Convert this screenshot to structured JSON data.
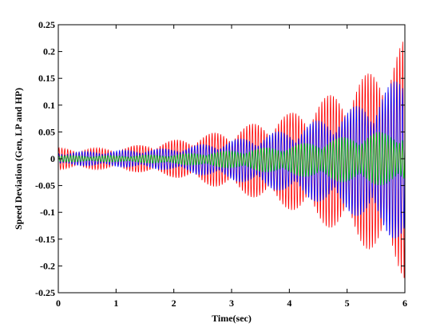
{
  "chart_data": {
    "type": "line",
    "title": "",
    "xlabel": "Time(sec)",
    "ylabel": "Speed Deviation (Gen, LP and HP)",
    "xlim": [
      0,
      6
    ],
    "ylim": [
      -0.25,
      0.25
    ],
    "xticks": [
      0,
      1,
      2,
      3,
      4,
      5,
      6
    ],
    "yticks": [
      -0.25,
      -0.2,
      -0.15,
      -0.1,
      -0.05,
      0,
      0.05,
      0.1,
      0.15,
      0.2,
      0.25
    ],
    "xtick_labels": [
      "0",
      "1",
      "2",
      "3",
      "4",
      "5",
      "6"
    ],
    "ytick_labels": [
      "-0.25",
      "-0.2",
      "-0.15",
      "-0.1",
      "-0.05",
      "0",
      "0.05",
      "0.1",
      "0.15",
      "0.2",
      "0.25"
    ],
    "grid": false,
    "legend": "none",
    "series": [
      {
        "color": "#ff0000",
        "envelope": {
          "t": [
            0,
            1,
            2,
            3,
            4,
            5,
            5.5,
            6
          ],
          "upper": [
            0.02,
            0.02,
            0.035,
            0.055,
            0.085,
            0.135,
            0.17,
            0.225
          ],
          "lower": [
            -0.02,
            -0.02,
            -0.035,
            -0.06,
            -0.095,
            -0.145,
            -0.18,
            -0.225
          ]
        },
        "oscillation_frequency_hz": 20
      },
      {
        "color": "#0000ff",
        "envelope": {
          "t": [
            0,
            1,
            2,
            3,
            4,
            5,
            5.5,
            6
          ],
          "upper": [
            0.012,
            0.015,
            0.02,
            0.035,
            0.055,
            0.09,
            0.12,
            0.16
          ],
          "lower": [
            -0.012,
            -0.015,
            -0.022,
            -0.04,
            -0.065,
            -0.1,
            -0.13,
            -0.165
          ]
        },
        "oscillation_frequency_hz": 20
      },
      {
        "color": "#00cc00",
        "envelope": {
          "t": [
            0,
            1,
            2,
            3,
            4,
            5,
            5.5,
            6
          ],
          "upper": [
            0.006,
            0.006,
            0.008,
            0.015,
            0.025,
            0.042,
            0.05,
            0.05
          ],
          "lower": [
            -0.006,
            -0.006,
            -0.01,
            -0.018,
            -0.03,
            -0.045,
            -0.05,
            -0.05
          ]
        },
        "oscillation_frequency_hz": 20
      }
    ]
  }
}
